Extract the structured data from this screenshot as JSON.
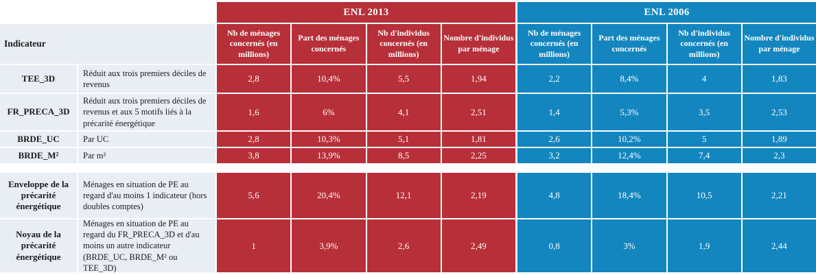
{
  "table": {
    "corner_header": "Indicateur",
    "colors": {
      "enl2013": "#b73039",
      "enl2006": "#1486bf",
      "label_bg": "#e9edf4"
    },
    "groups": [
      {
        "title": "ENL 2013"
      },
      {
        "title": "ENL 2006"
      }
    ],
    "column_headers": [
      "Nb de ménages concernés (en millions)",
      "Part des ménages concernés",
      "Nb d'individus concernés (en millions)",
      "Nombre d'individus par ménage"
    ],
    "rows": [
      {
        "label": "TEE_3D",
        "desc": "Réduit aux trois premiers déciles de revenus",
        "enl2013": [
          "2,8",
          "10,4%",
          "5,5",
          "1,94"
        ],
        "enl2006": [
          "2,2",
          "8,4%",
          "4",
          "1,83"
        ]
      },
      {
        "label": "FR_PRECA_3D",
        "desc": "Réduit aux trois premiers déciles de revenus et aux 5 motifs liés à la précarité énergétique",
        "enl2013": [
          "1,6",
          "6%",
          "4,1",
          "2,51"
        ],
        "enl2006": [
          "1,4",
          "5,3%",
          "3,5",
          "2,53"
        ]
      },
      {
        "label": "BRDE_UC",
        "desc": "Par UC",
        "enl2013": [
          "2,8",
          "10,3%",
          "5,1",
          "1,81"
        ],
        "enl2006": [
          "2,6",
          "10,2%",
          "5",
          "1,89"
        ]
      },
      {
        "label": "BRDE_M²",
        "desc": "Par m²",
        "enl2013": [
          "3,8",
          "13,9%",
          "8,5",
          "2,25"
        ],
        "enl2006": [
          "3,2",
          "12,4%",
          "7,4",
          "2,3"
        ]
      },
      {
        "label": "Enveloppe de la précarité énergétique",
        "desc": "Ménages en situation de PE au regard d'au moins 1 indicateur (hors doubles comptes)",
        "enl2013": [
          "5,6",
          "20,4%",
          "12,1",
          "2,19"
        ],
        "enl2006": [
          "4,8",
          "18,4%",
          "10,5",
          "2,21"
        ]
      },
      {
        "label": "Noyau de la précarité énergétique",
        "desc": "Ménages en situation de PE au regard du FR_PRECA_3D et d'au moins un autre indicateur (BRDE_UC, BRDE_M² ou TEE_3D)",
        "enl2013": [
          "1",
          "3,9%",
          "2,6",
          "2,49"
        ],
        "enl2006": [
          "0,8",
          "3%",
          "1,9",
          "2,44"
        ]
      }
    ]
  }
}
